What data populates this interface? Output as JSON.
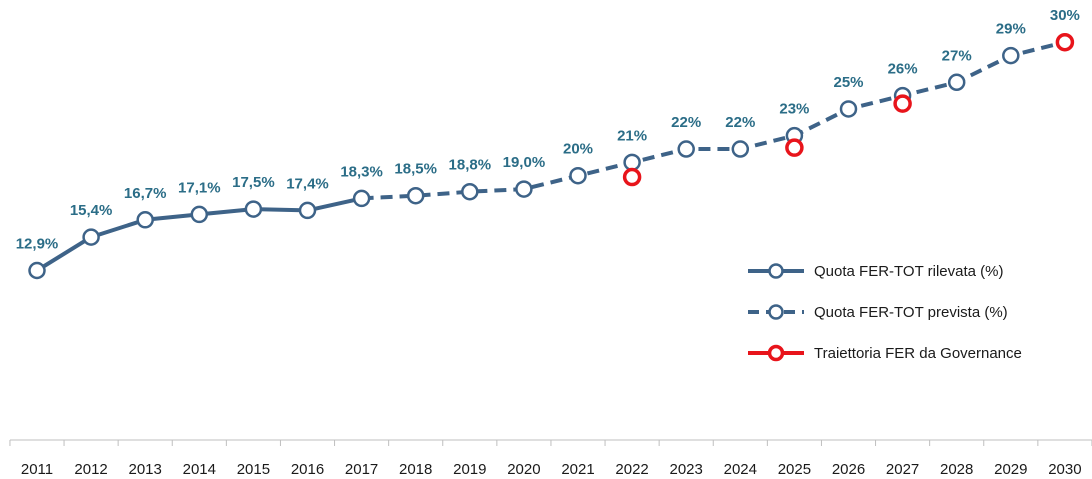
{
  "chart_data": {
    "type": "line",
    "x": [
      2011,
      2012,
      2013,
      2014,
      2015,
      2016,
      2017,
      2018,
      2019,
      2020,
      2021,
      2022,
      2023,
      2024,
      2025,
      2026,
      2027,
      2028,
      2029,
      2030
    ],
    "tick_labels": [
      "2011",
      "2012",
      "2013",
      "2014",
      "2015",
      "2016",
      "2017",
      "2018",
      "2019",
      "2020",
      "2021",
      "2022",
      "2023",
      "2024",
      "2025",
      "2026",
      "2027",
      "2028",
      "2029",
      "2030"
    ],
    "series": [
      {
        "name": "Quota FER-TOT rilevata (%)",
        "style": "solid",
        "color": "#3e6388",
        "x": [
          2011,
          2012,
          2013,
          2014,
          2015,
          2016,
          2017
        ],
        "values": [
          12.9,
          15.4,
          16.7,
          17.1,
          17.5,
          17.4,
          18.3
        ]
      },
      {
        "name": "Quota FER-TOT prevista (%)",
        "style": "dashed",
        "color": "#3e6388",
        "x": [
          2017,
          2018,
          2019,
          2020,
          2021,
          2022,
          2023,
          2024,
          2025,
          2026,
          2027,
          2028,
          2029,
          2030
        ],
        "values": [
          18.3,
          18.5,
          18.8,
          19.0,
          20,
          21,
          22,
          22,
          23,
          25,
          26,
          27,
          29,
          30
        ]
      },
      {
        "name": "Traiettoria FER da Governance",
        "style": "markers",
        "color": "#e8141b",
        "x": [
          2022,
          2025,
          2027,
          2030
        ],
        "values": [
          19.9,
          22.1,
          25.4,
          30
        ]
      }
    ],
    "data_labels": [
      {
        "x": 2011,
        "text": "12,9%"
      },
      {
        "x": 2012,
        "text": "15,4%"
      },
      {
        "x": 2013,
        "text": "16,7%"
      },
      {
        "x": 2014,
        "text": "17,1%"
      },
      {
        "x": 2015,
        "text": "17,5%"
      },
      {
        "x": 2016,
        "text": "17,4%"
      },
      {
        "x": 2017,
        "text": "18,3%"
      },
      {
        "x": 2018,
        "text": "18,5%"
      },
      {
        "x": 2019,
        "text": "18,8%"
      },
      {
        "x": 2020,
        "text": "19,0%"
      },
      {
        "x": 2021,
        "text": "20%"
      },
      {
        "x": 2022,
        "text": "21%"
      },
      {
        "x": 2023,
        "text": "22%"
      },
      {
        "x": 2024,
        "text": "22%"
      },
      {
        "x": 2025,
        "text": "23%"
      },
      {
        "x": 2026,
        "text": "25%"
      },
      {
        "x": 2027,
        "text": "26%"
      },
      {
        "x": 2028,
        "text": "27%"
      },
      {
        "x": 2029,
        "text": "29%"
      },
      {
        "x": 2030,
        "text": "30%"
      }
    ],
    "legend": {
      "placement": "right",
      "entries": [
        {
          "label": "Quota FER-TOT rilevata (%)",
          "style": "solid",
          "color": "#3e6388"
        },
        {
          "label": "Quota FER-TOT prevista (%)",
          "style": "dashed",
          "color": "#3e6388"
        },
        {
          "label": "Traiettoria FER da Governance",
          "style": "red-marker",
          "color": "#e8141b"
        }
      ]
    },
    "title": "",
    "xlabel": "",
    "ylabel": "",
    "ylim": [
      10,
      31
    ],
    "grid": false,
    "colors": {
      "line": "#3e6388",
      "label": "#2b6d87",
      "governance": "#e8141b",
      "axis": "#bfbfbf"
    }
  }
}
